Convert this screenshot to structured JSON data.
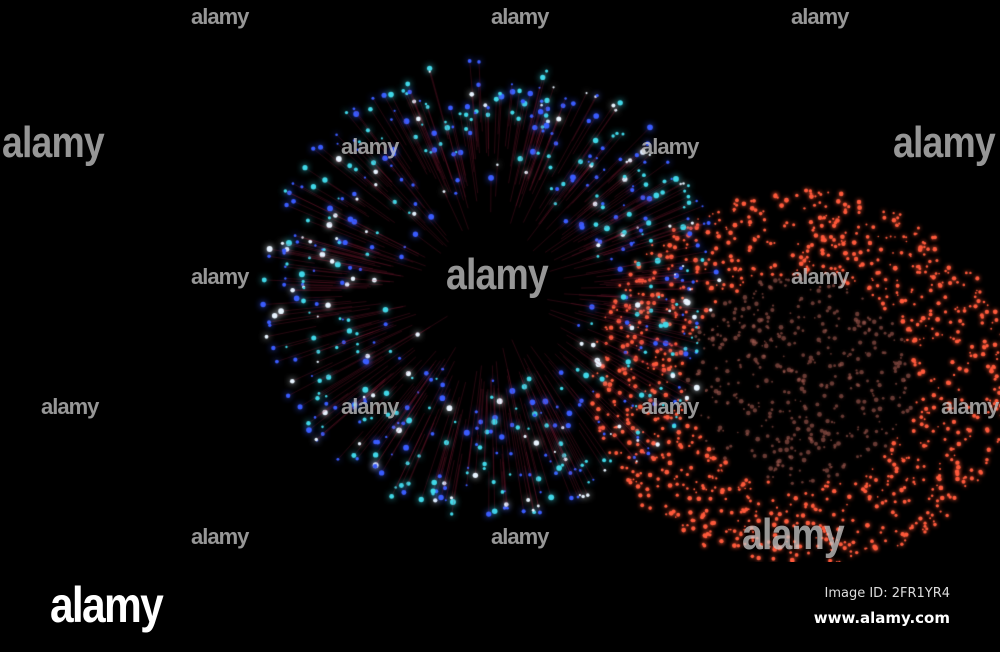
{
  "photo": {
    "subject": "fireworks",
    "colors": {
      "background": "#000000",
      "burst_blue": "#3a5cff",
      "burst_cyan": "#40d8e8",
      "burst_white": "#e8f4ff",
      "burst_red": "#ff5a3c",
      "trail_red": "#6a1420"
    }
  },
  "watermark": {
    "text": "alamy"
  },
  "footer": {
    "logo": "alamy",
    "image_id": "Image ID: 2FR1YR4",
    "website": "www.alamy.com"
  }
}
